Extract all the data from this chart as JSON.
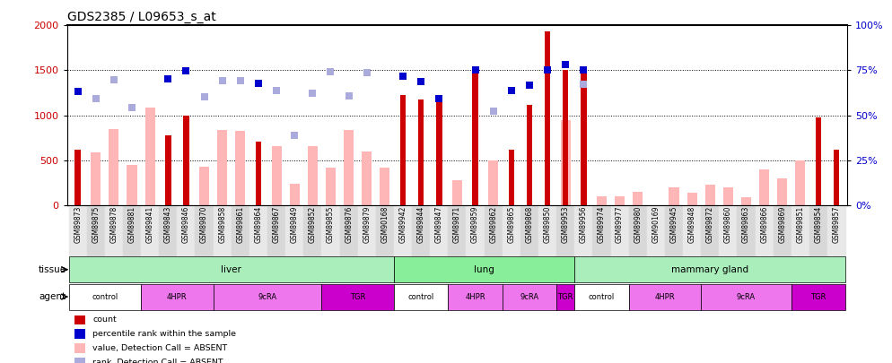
{
  "title": "GDS2385 / L09653_s_at",
  "samples": [
    "GSM89873",
    "GSM89875",
    "GSM89878",
    "GSM89881",
    "GSM89841",
    "GSM89843",
    "GSM89846",
    "GSM89870",
    "GSM89858",
    "GSM89861",
    "GSM89864",
    "GSM89867",
    "GSM89849",
    "GSM89852",
    "GSM89855",
    "GSM89876",
    "GSM89879",
    "GSM90168",
    "GSM89942",
    "GSM89844",
    "GSM89847",
    "GSM89871",
    "GSM89859",
    "GSM89862",
    "GSM89865",
    "GSM89868",
    "GSM89850",
    "GSM89953",
    "GSM89956",
    "GSM89974",
    "GSM89977",
    "GSM89980",
    "GSM90169",
    "GSM89945",
    "GSM89848",
    "GSM89872",
    "GSM89860",
    "GSM89863",
    "GSM89866",
    "GSM89869",
    "GSM89851",
    "GSM89854",
    "GSM89857"
  ],
  "count": [
    620,
    null,
    null,
    null,
    null,
    780,
    1000,
    null,
    null,
    null,
    710,
    null,
    null,
    null,
    null,
    null,
    null,
    null,
    1230,
    1180,
    1190,
    null,
    1480,
    null,
    620,
    1120,
    1930,
    1500,
    1500,
    null,
    null,
    null,
    null,
    null,
    null,
    null,
    null,
    null,
    null,
    null,
    null,
    980,
    620
  ],
  "absent_value": [
    null,
    590,
    850,
    450,
    1090,
    null,
    null,
    430,
    840,
    830,
    null,
    660,
    240,
    660,
    420,
    840,
    600,
    420,
    null,
    null,
    null,
    280,
    null,
    500,
    null,
    null,
    null,
    950,
    null,
    100,
    100,
    150,
    null,
    200,
    140,
    230,
    200,
    90,
    400,
    300,
    500,
    null,
    null
  ],
  "percentile_rank": [
    1270,
    null,
    null,
    null,
    null,
    1400,
    1490,
    null,
    null,
    null,
    1360,
    null,
    null,
    null,
    null,
    null,
    null,
    null,
    1430,
    1370,
    1190,
    null,
    1500,
    null,
    1280,
    1340,
    1500,
    1560,
    1500,
    null,
    null,
    null,
    null,
    null,
    null,
    null,
    null,
    null,
    null,
    null,
    null,
    null,
    null
  ],
  "absent_rank": [
    null,
    1185,
    1390,
    1090,
    null,
    null,
    null,
    1210,
    1380,
    1380,
    null,
    1280,
    780,
    1250,
    1480,
    1220,
    1470,
    null,
    null,
    null,
    null,
    null,
    null,
    1050,
    null,
    null,
    null,
    null,
    1350,
    null,
    null,
    null,
    null,
    null,
    null,
    null,
    null,
    null,
    null,
    null,
    null,
    null,
    null
  ],
  "tissue_spans": [
    {
      "label": "liver",
      "start": 0,
      "end": 18
    },
    {
      "label": "lung",
      "start": 18,
      "end": 28
    },
    {
      "label": "mammary gland",
      "start": 28,
      "end": 43
    }
  ],
  "agent_spans": [
    {
      "label": "control",
      "start": 0,
      "end": 4,
      "color": "#ffffff"
    },
    {
      "label": "4HPR",
      "start": 4,
      "end": 8,
      "color": "#EE77EE"
    },
    {
      "label": "9cRA",
      "start": 8,
      "end": 14,
      "color": "#EE77EE"
    },
    {
      "label": "TGR",
      "start": 14,
      "end": 18,
      "color": "#CC00CC"
    },
    {
      "label": "control",
      "start": 18,
      "end": 21,
      "color": "#ffffff"
    },
    {
      "label": "4HPR",
      "start": 21,
      "end": 24,
      "color": "#EE77EE"
    },
    {
      "label": "9cRA",
      "start": 24,
      "end": 27,
      "color": "#EE77EE"
    },
    {
      "label": "TGR",
      "start": 27,
      "end": 28,
      "color": "#CC00CC"
    },
    {
      "label": "control",
      "start": 28,
      "end": 31,
      "color": "#ffffff"
    },
    {
      "label": "4HPR",
      "start": 31,
      "end": 35,
      "color": "#EE77EE"
    },
    {
      "label": "9cRA",
      "start": 35,
      "end": 40,
      "color": "#EE77EE"
    },
    {
      "label": "TGR",
      "start": 40,
      "end": 43,
      "color": "#CC00CC"
    }
  ],
  "ylim_left": [
    0,
    2000
  ],
  "ylim_right": [
    0,
    100
  ],
  "yticks_left": [
    0,
    500,
    1000,
    1500,
    2000
  ],
  "yticks_right": [
    0,
    25,
    50,
    75,
    100
  ],
  "count_color": "#CC0000",
  "absent_value_color": "#FFB6B6",
  "percentile_color": "#0000CC",
  "absent_rank_color": "#AAAADD",
  "tissue_color_1": "#99EE99",
  "tissue_color_2": "#66DD66",
  "tissue_bg": "#BBEEBB",
  "plot_bg_color": "#ffffff",
  "title_fontsize": 10,
  "tick_fontsize": 8,
  "xlabel_fontsize": 5.5,
  "legend_square_color": "#CC0000",
  "legend_square_color2": "#0000CC"
}
